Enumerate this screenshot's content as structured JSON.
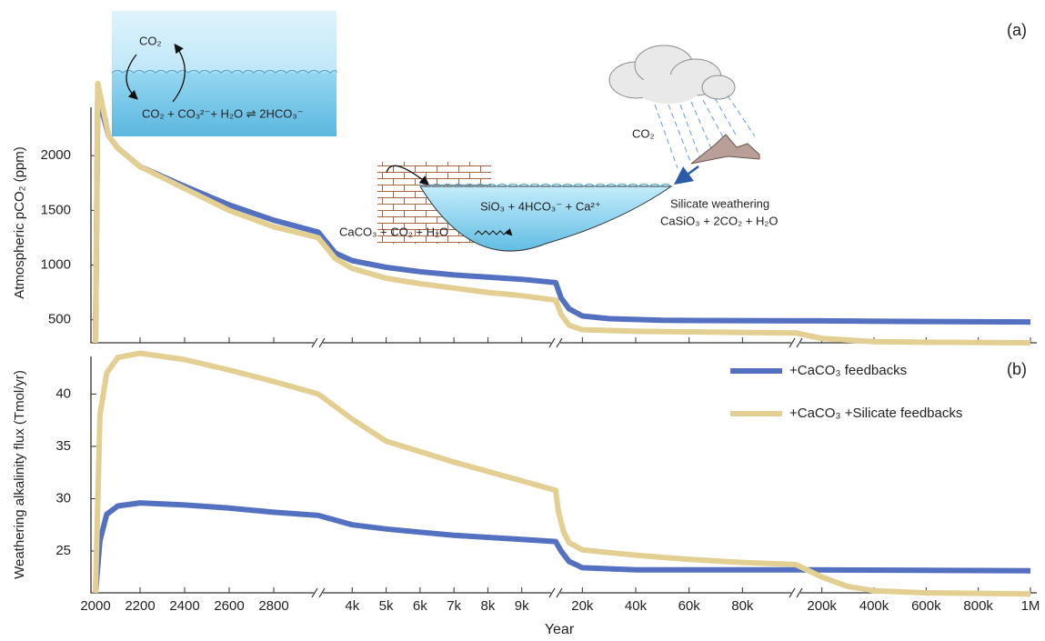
{
  "chart_data": [
    {
      "type": "line",
      "panel_label": "(a)",
      "y_label": "Atmospheric pCO₂ (ppm)",
      "ylim": [
        290,
        2442
      ],
      "yticks": [
        500,
        1000,
        1500,
        2000
      ],
      "xlim": [
        [
          2000,
          3000
        ],
        [
          3000,
          10000
        ],
        [
          10000,
          100000
        ],
        [
          100000,
          1000000
        ]
      ],
      "annotations": [
        "CO₂",
        "CO₂ + CO₃²⁻+ H₂O ⇌ 2HCO₃⁻",
        "SiO₃ + 4HCO₃⁻ + Ca²⁺",
        "CaCO₃ + CO₂ + H₂O",
        "CO₂",
        "Silicate weathering",
        "CaSiO₃ + 2CO₂ + H₂O"
      ],
      "series": [
        {
          "color": "#5470c0",
          "x": [
            2000,
            2010,
            2060,
            2100,
            2200,
            2400,
            2600,
            2800,
            3000,
            3500,
            4000,
            5000,
            6000,
            7000,
            8000,
            9000,
            10000,
            12000,
            15000,
            20000,
            30000,
            50000,
            100000,
            200000,
            500000,
            1000000
          ],
          "values": [
            290,
            2550,
            2175,
            2070,
            1900,
            1720,
            1550,
            1410,
            1300,
            1110,
            1040,
            980,
            940,
            910,
            890,
            870,
            840,
            700,
            600,
            535,
            510,
            495,
            490,
            490,
            485,
            480
          ]
        },
        {
          "color": "#e3cf92",
          "x": [
            2000,
            2010,
            2060,
            2100,
            2200,
            2400,
            2600,
            2800,
            3000,
            3500,
            4000,
            5000,
            6000,
            7000,
            8000,
            9000,
            10000,
            12000,
            15000,
            20000,
            40000,
            60000,
            80000,
            100000,
            200000,
            400000,
            600000,
            1000000
          ],
          "values": [
            290,
            2660,
            2175,
            2070,
            1900,
            1700,
            1500,
            1350,
            1250,
            1060,
            970,
            880,
            830,
            790,
            750,
            720,
            680,
            550,
            450,
            410,
            395,
            390,
            385,
            380,
            330,
            300,
            295,
            290
          ]
        }
      ]
    },
    {
      "type": "line",
      "panel_label": "(b)",
      "x_label": "Year",
      "y_label": "Weathering alkalinity flux (Tmol/yr)",
      "ylim": [
        21,
        43.6
      ],
      "yticks": [
        25,
        30,
        35,
        40
      ],
      "xlim": [
        [
          2000,
          3000
        ],
        [
          3000,
          10000
        ],
        [
          10000,
          100000
        ],
        [
          100000,
          1000000
        ]
      ],
      "xticks": [
        2000,
        2200,
        2400,
        2600,
        2800,
        {
          "value": 4000,
          "label": "4k"
        },
        {
          "value": 5000,
          "label": "5k"
        },
        {
          "value": 6000,
          "label": "6k"
        },
        {
          "value": 7000,
          "label": "7k"
        },
        {
          "value": 8000,
          "label": "8k"
        },
        {
          "value": 9000,
          "label": "9k"
        },
        {
          "value": 20000,
          "label": "20k"
        },
        {
          "value": 40000,
          "label": "40k"
        },
        {
          "value": 60000,
          "label": "60k"
        },
        {
          "value": 80000,
          "label": "80k"
        },
        {
          "value": 200000,
          "label": "200k"
        },
        {
          "value": 400000,
          "label": "400k"
        },
        {
          "value": 600000,
          "label": "600k"
        },
        {
          "value": 800000,
          "label": "800k"
        },
        {
          "value": 1000000,
          "label": "1M"
        }
      ],
      "legend": "upper right",
      "series": [
        {
          "name": "+CaCO₃ feedbacks",
          "color": "#5470c0",
          "x": [
            2000,
            2020,
            2050,
            2100,
            2200,
            2400,
            2600,
            2800,
            3000,
            4000,
            5000,
            6000,
            7000,
            8000,
            9000,
            10000,
            12000,
            15000,
            20000,
            40000,
            60000,
            100000,
            1000000
          ],
          "values": [
            21,
            26,
            28.5,
            29.3,
            29.6,
            29.4,
            29.1,
            28.7,
            28.4,
            27.5,
            27.1,
            26.8,
            26.5,
            26.3,
            26.1,
            25.9,
            25,
            24,
            23.4,
            23.2,
            23.2,
            23.2,
            23.1
          ]
        },
        {
          "name": "+CaCO₃ +Silicate feedbacks",
          "color": "#e3cf92",
          "x": [
            2000,
            2020,
            2050,
            2100,
            2200,
            2400,
            2600,
            2800,
            3000,
            4000,
            5000,
            6000,
            7000,
            8000,
            9000,
            10000,
            11000,
            13000,
            15000,
            20000,
            40000,
            60000,
            80000,
            100000,
            200000,
            300000,
            400000,
            600000,
            1000000
          ],
          "values": [
            21,
            38,
            42,
            43.5,
            43.9,
            43.3,
            42.3,
            41.2,
            40,
            37.6,
            35.5,
            34.5,
            33.5,
            32.6,
            31.7,
            30.8,
            28.8,
            26.8,
            25.8,
            25.1,
            24.6,
            24.2,
            23.9,
            23.7,
            22.5,
            21.6,
            21.2,
            21,
            20.9
          ]
        }
      ]
    }
  ]
}
